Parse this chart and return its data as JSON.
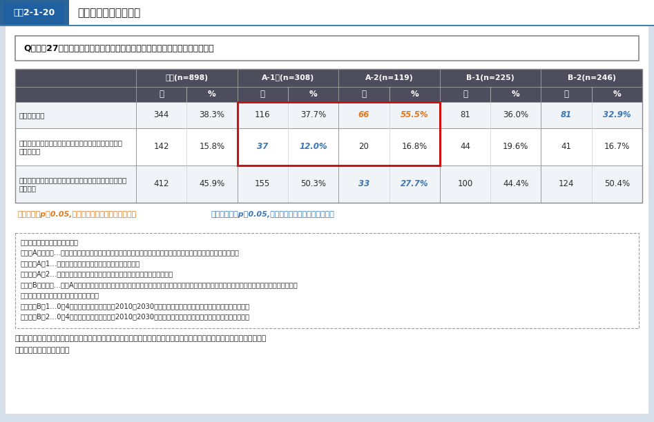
{
  "title_label": "図表2-1-20",
  "title_text": "保育所の統廃合の状況",
  "bg_color": "#d6e0ea",
  "title_bg_left": "#2b6496",
  "title_bg_right": "#ffffff",
  "title_border": "#4080b0",
  "question_text": "Q　平成27年度以降の貴自治体内保育所等の統廃合について教えてください。",
  "header_bg": "#4d4d5e",
  "col_headers": [
    "全体(n=898)",
    "A-1　(n=308)",
    "A-2(n=119)",
    "B-1(n=225)",
    "B-2(n=246)"
  ],
  "sub_headers": [
    "数",
    "%",
    "数",
    "%",
    "数",
    "%",
    "数",
    "%",
    "数",
    "%"
  ],
  "row_labels": [
    "統廃合をした",
    "これまで統廃合をしていないが、今後、統廃合を行う\n予定がある",
    "これまで統廃合をしておらず、今後も、統廃合を行う予\n定はない"
  ],
  "data": [
    [
      "344",
      "38.3%",
      "116",
      "37.7%",
      "66",
      "55.5%",
      "81",
      "36.0%",
      "81",
      "32.9%"
    ],
    [
      "142",
      "15.8%",
      "37",
      "12.0%",
      "20",
      "16.8%",
      "44",
      "19.6%",
      "41",
      "16.7%"
    ],
    [
      "412",
      "45.9%",
      "155",
      "50.3%",
      "33",
      "27.7%",
      "100",
      "44.4%",
      "124",
      "50.4%"
    ]
  ],
  "cell_colors": [
    [
      "k",
      "k",
      "k",
      "k",
      "o",
      "o",
      "k",
      "k",
      "b",
      "b"
    ],
    [
      "k",
      "k",
      "b",
      "b",
      "k",
      "k",
      "k",
      "k",
      "k",
      "k"
    ],
    [
      "k",
      "k",
      "k",
      "k",
      "b",
      "b",
      "k",
      "k",
      "k",
      "k"
    ]
  ],
  "orange_color": "#e07820",
  "blue_color": "#3a78b5",
  "dark_color": "#2a2a2a",
  "red_box_color": "#cc1111",
  "note_orange": "オレンジ：p＜0.05,全体の割合と比べて割合が高い",
  "note_blue": "　　ブルー：p＜0.05,全体の割合と比べて割合が低い",
  "ref_lines": [
    "（参考）自治体の分類の考え方",
    "〇分類Aの考え方…過疎地域・離島含む人口減少の影響下にある市町村を、過疎地域や離島を基に以下のとおり分類",
    "　・分類A－1…市町村全体が過疎地域又は市町村全体が離島",
    "　・分類A－2…市町村の中に一部過疎地域を含む又は市町村の中に離島を含む",
    "〇分類Bの考え方…分類Aに該当しない地域を、将来的に人口減少の可能性のある市町村とし、以下のとおり、より急速に人口減少が起こる地域と",
    "　緩やかに人口減少が起こる地域とに分類",
    "　・分類B－1…0～4歳人口の将来推計人口の2010～2030年の増減率について中央値より減少率が高い市町村",
    "　・分類B－2…0～4歳人口の将来推計人口の2010～2030年の増減率について中央値より減少率が低い市町村"
  ],
  "source_line1": "資料：令和２年度子ども・子育て支援推進調査研究事業「人口減少地域等における保育に関するニーズや事業継続に向けた",
  "source_line2": "　取組事例に関する調査」"
}
